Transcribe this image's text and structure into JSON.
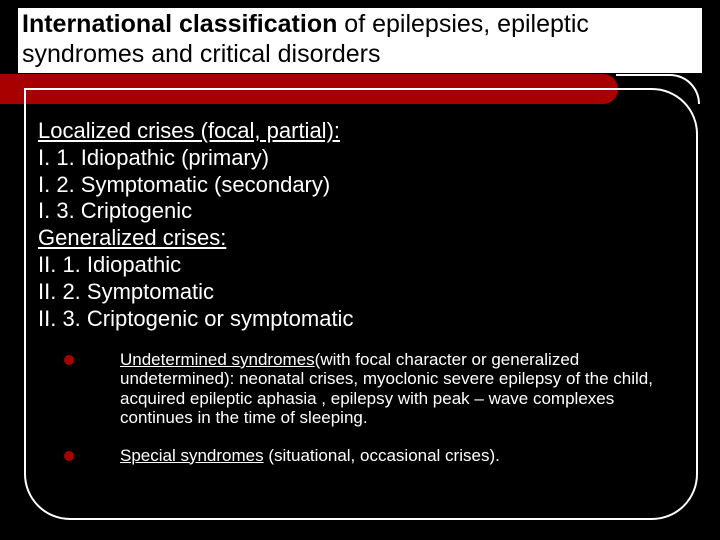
{
  "colors": {
    "background": "#000000",
    "accent": "#a80000",
    "text_on_dark": "#ffffff",
    "text_on_light": "#000000"
  },
  "title": {
    "bold_part": "International classification",
    "rest": " of epilepsies, epileptic syndromes and critical disorders"
  },
  "section1": {
    "header": "Localized crises (focal, partial):",
    "items": [
      "I. 1. Idiopathic (primary)",
      "I. 2. Symptomatic (secondary)",
      "I. 3. Criptogenic"
    ]
  },
  "section2": {
    "header": "Generalized crises:",
    "items": [
      "II. 1. Idiopathic",
      "II. 2. Symptomatic",
      "II. 3. Criptogenic or symptomatic"
    ]
  },
  "bullet1": {
    "underlined": "Undetermined syndromes",
    "rest": "(with focal character or generalized undetermined): neonatal crises, myoclonic severe epilepsy of the child, acquired epileptic aphasia , epilepsy with peak – wave complexes continues in the time of sleeping."
  },
  "bullet2": {
    "underlined": "Special syndromes",
    "rest": " (situational, occasional crises)."
  }
}
